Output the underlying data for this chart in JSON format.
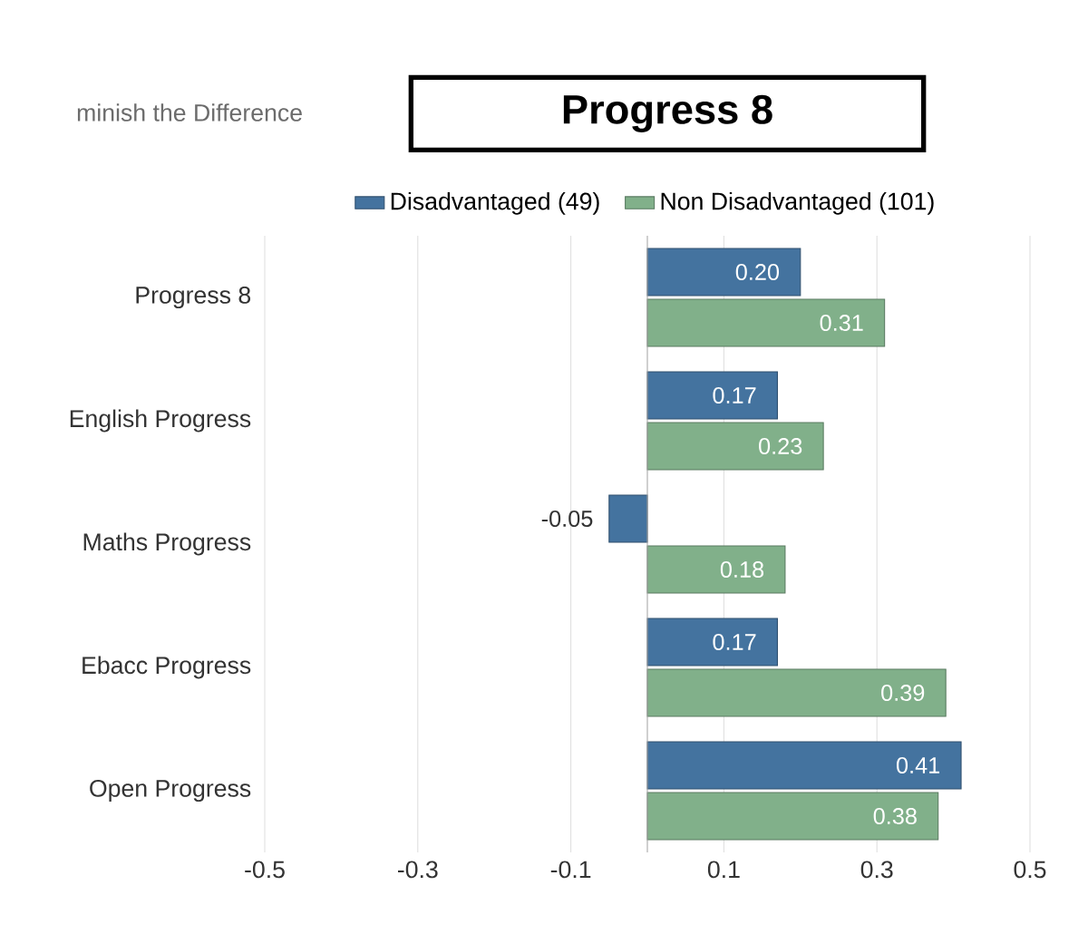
{
  "chart_data": {
    "type": "bar",
    "orientation": "horizontal",
    "title": "Progress 8",
    "subtitle": "minish the Difference",
    "categories": [
      "Progress 8",
      "English Progress",
      "Maths Progress",
      "Ebacc Progress",
      "Open Progress"
    ],
    "series": [
      {
        "name": "Disadvantaged (49)",
        "color": "#44739f",
        "values": [
          0.2,
          0.17,
          -0.05,
          0.17,
          0.41
        ],
        "value_labels": [
          "0.20",
          "0.17",
          "-0.05",
          "0.17",
          "0.41"
        ]
      },
      {
        "name": "Non Disadvantaged (101)",
        "color": "#81b08a",
        "values": [
          0.31,
          0.23,
          0.18,
          0.39,
          0.38
        ],
        "value_labels": [
          "0.31",
          "0.23",
          "0.18",
          "0.39",
          "0.38"
        ]
      }
    ],
    "xlim": [
      -0.5,
      0.5
    ],
    "xticks": [
      -0.5,
      -0.3,
      -0.1,
      0.1,
      0.3,
      0.5
    ],
    "grid": "x",
    "legend": "top"
  }
}
